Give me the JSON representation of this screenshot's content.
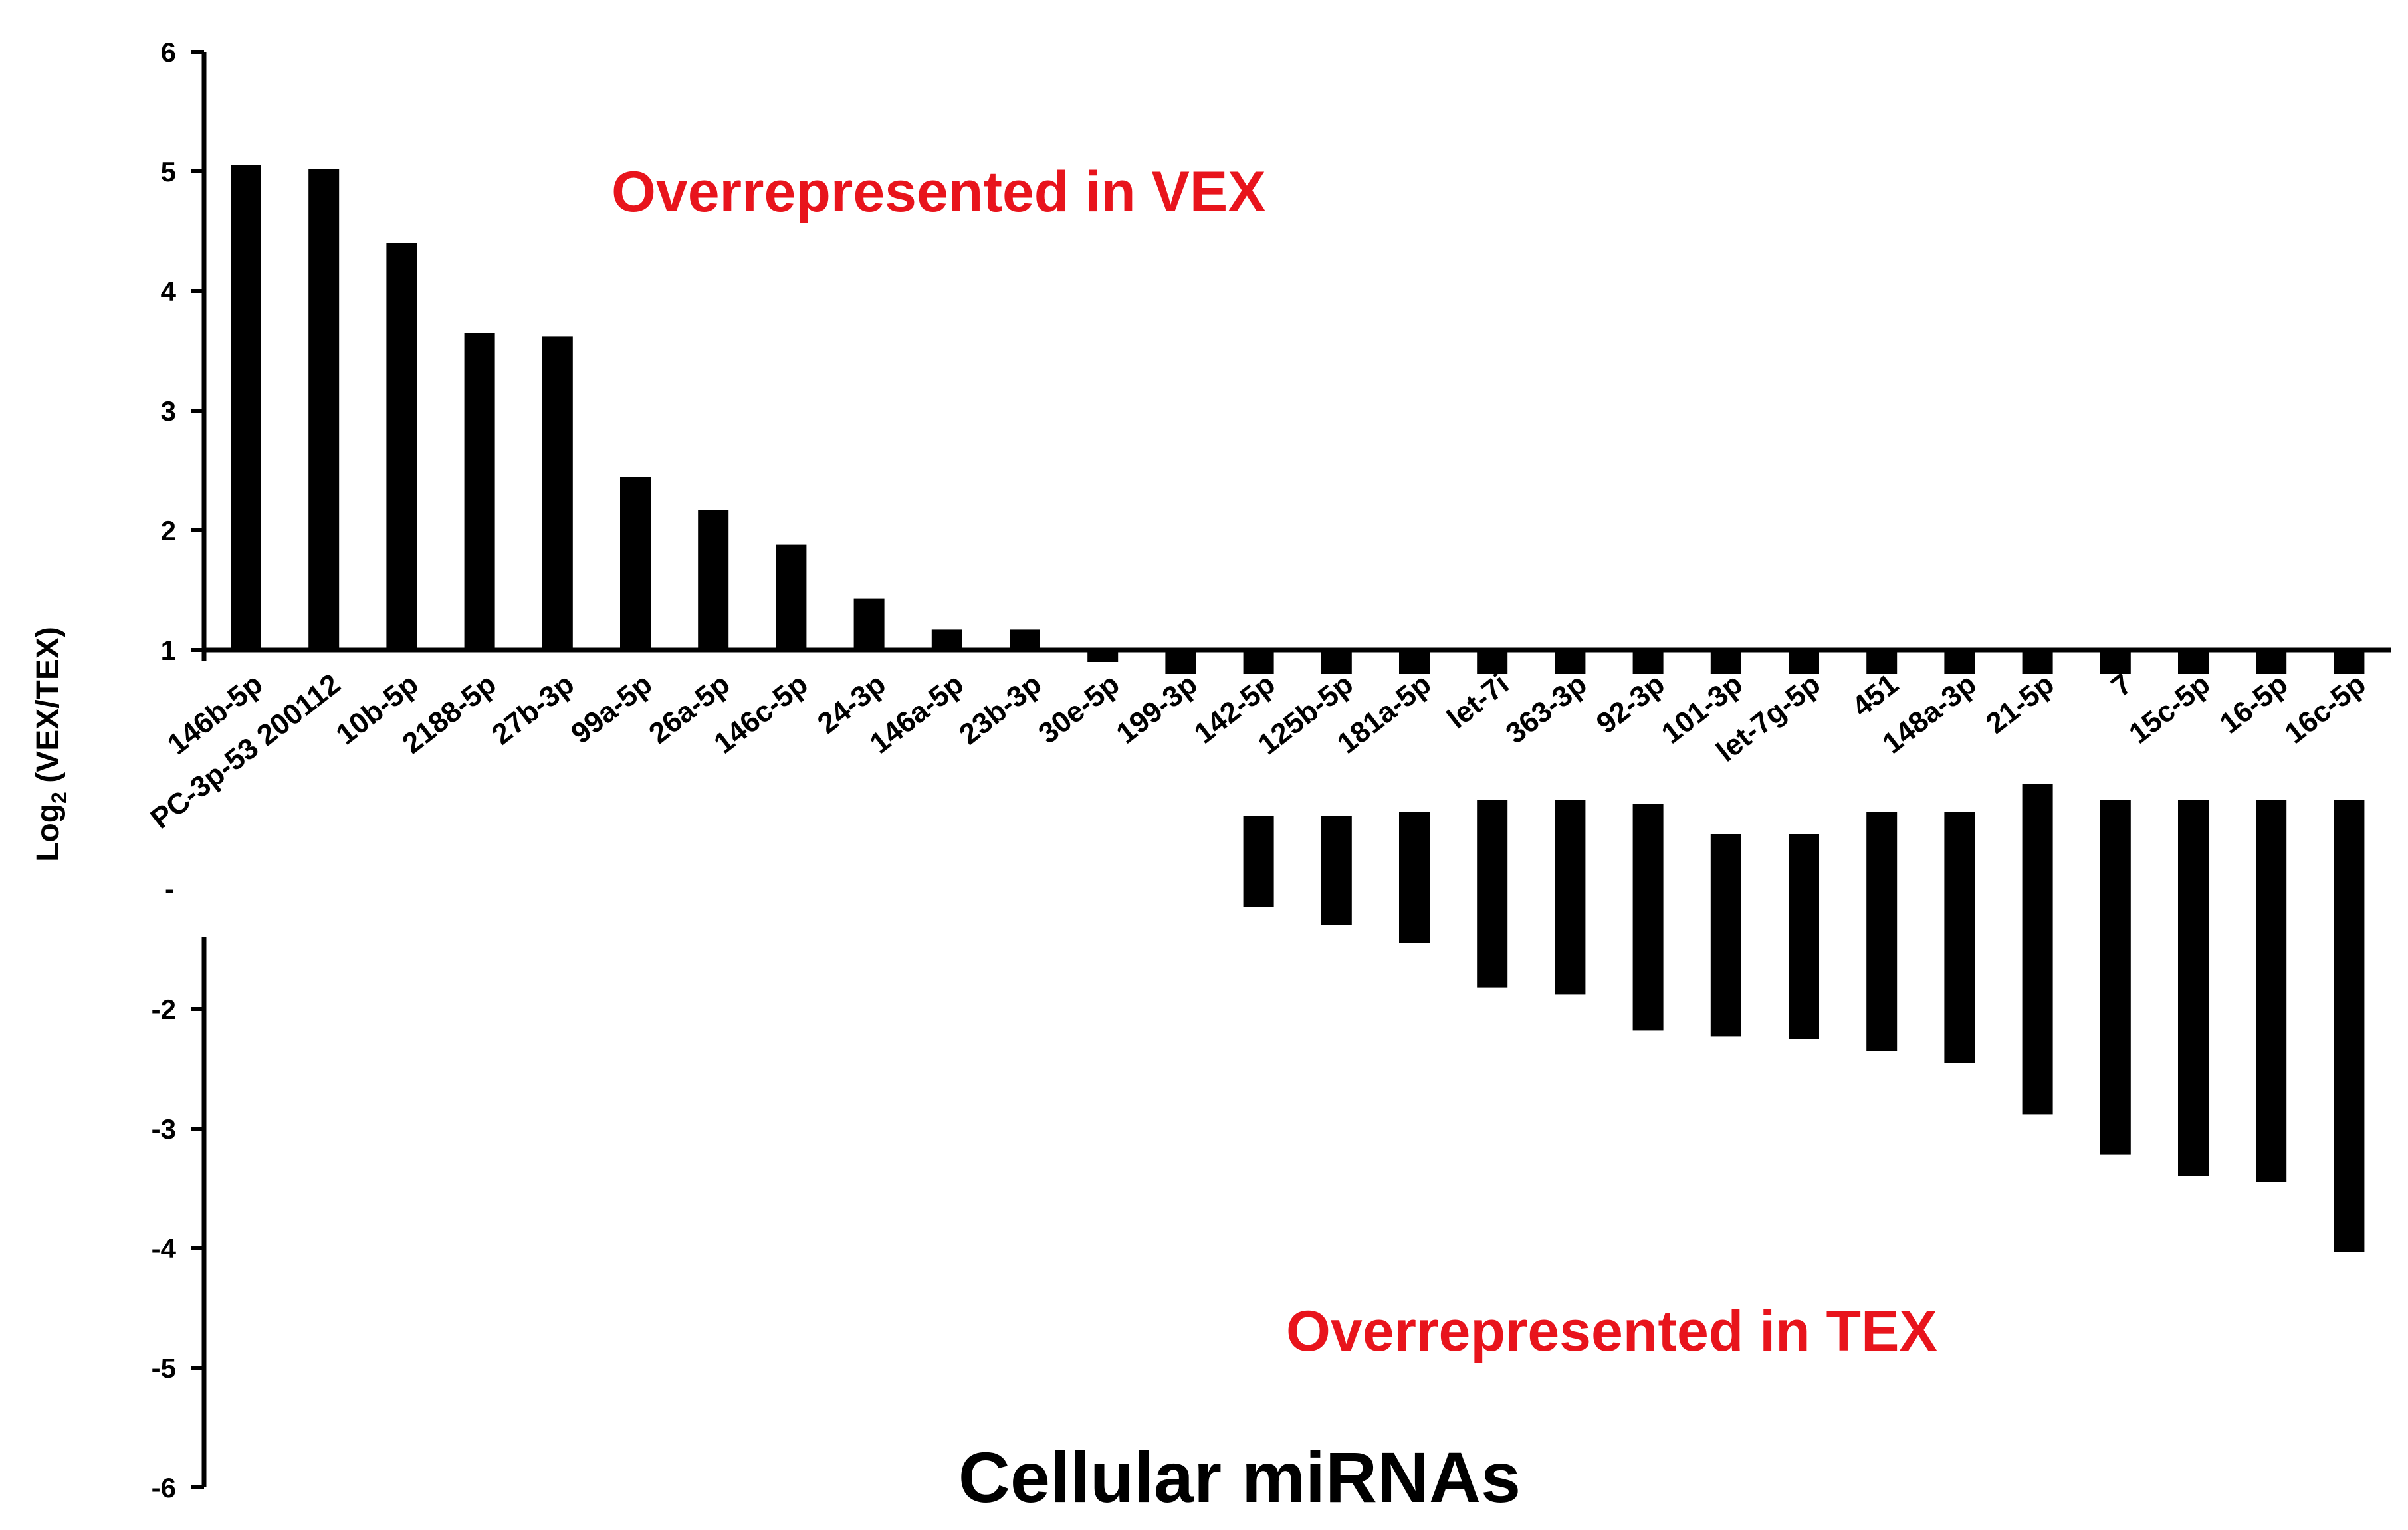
{
  "chart_data": {
    "type": "bar",
    "title": "",
    "xlabel": "Cellular miRNAs",
    "ylabel_main": "Log",
    "ylabel_sub": "2",
    "ylabel_rest": " (VEX/TEX)",
    "y_ticks": [
      "-6",
      "-5",
      "-4",
      "-3",
      "-2",
      "1",
      "2",
      "3",
      "4",
      "5",
      "6"
    ],
    "ylim": [
      -6,
      6
    ],
    "annotations": [
      {
        "text": "Overrepresented in VEX",
        "color": "#e8141c"
      },
      {
        "text": "Overrepresented in TEX",
        "color": "#e8141c"
      }
    ],
    "categories": [
      "146b-5p",
      "PC-3p-53 200112",
      "10b-5p",
      "2188-5p",
      "27b-3p",
      "99a-5p",
      "26a-5p",
      "146c-5p",
      "24-3p",
      "146a-5p",
      "23b-3p",
      "30e-5p",
      "199-3p",
      "142-5p",
      "125b-5p",
      "181a-5p",
      "let-7i",
      "363-3p",
      "92-3p",
      "101-3p",
      "let-7g-5p",
      "451",
      "148a-3p",
      "21-5p",
      "7",
      "15c-5p",
      "16-5p",
      "16c-5p"
    ],
    "values": [
      5.05,
      5.02,
      4.4,
      3.65,
      3.62,
      2.45,
      2.17,
      1.88,
      1.43,
      1.17,
      1.17,
      0.9,
      0.8,
      0.8,
      0.8,
      0.8,
      0.8,
      0.8,
      0.8,
      0.8,
      0.8,
      0.8,
      0.8,
      0.8,
      0.8,
      0.8,
      0.8,
      0.8
    ],
    "lower_values": [
      null,
      null,
      null,
      null,
      null,
      null,
      null,
      null,
      null,
      null,
      null,
      null,
      null,
      -1.15,
      -1.3,
      -1.45,
      -1.82,
      -1.88,
      -2.18,
      -2.23,
      -2.25,
      -2.35,
      -2.45,
      -2.88,
      -3.22,
      -3.4,
      -3.45,
      -4.03
    ],
    "bar_color": "#000000"
  }
}
